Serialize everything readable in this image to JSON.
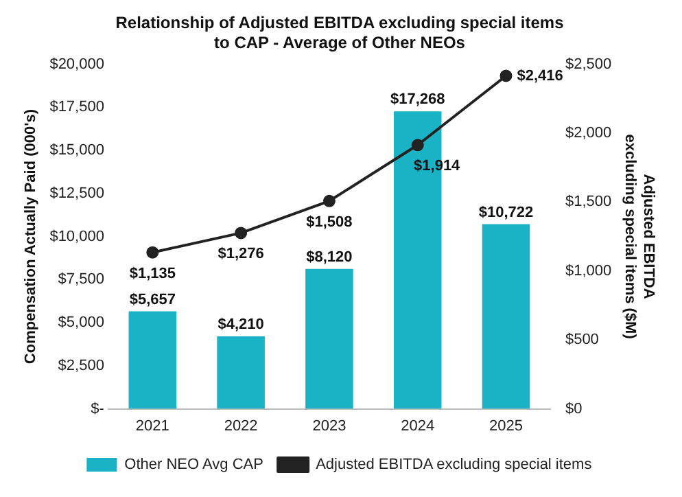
{
  "chart_data": {
    "type": "bar",
    "title": [
      "Relationship of Adjusted EBITDA excluding special items",
      "to CAP - Average of Other NEOs"
    ],
    "categories": [
      "2021",
      "2022",
      "2023",
      "2024",
      "2025"
    ],
    "series": [
      {
        "name": "Other NEO Avg CAP",
        "color": "#1ab3c6",
        "values": [
          5657,
          4210,
          8120,
          17268,
          10722
        ],
        "value_labels": [
          "$5,657",
          "$4,210",
          "$8,120",
          "$17,268",
          "$10,722"
        ]
      },
      {
        "name": "Adjusted EBITDA excluding special items",
        "type": "line",
        "axis": "y2",
        "color": "#222222",
        "marker": "circle",
        "values": [
          1135,
          1276,
          1508,
          1914,
          2416
        ],
        "value_labels": [
          "$1,135",
          "$1,276",
          "$1,508",
          "$1,914",
          "$2,416"
        ]
      }
    ],
    "ylabel": "Compensation Actually Paid (000's)",
    "y2label": [
      "Adjusted EBITDA",
      "excluding special items ($M)"
    ],
    "ylim": [
      0,
      20000
    ],
    "yticks": [
      {
        "value": 0,
        "label": "$-"
      },
      {
        "value": 2500,
        "label": "$2,500"
      },
      {
        "value": 5000,
        "label": "$5,000"
      },
      {
        "value": 7500,
        "label": "$7,500"
      },
      {
        "value": 10000,
        "label": "$10,000"
      },
      {
        "value": 12500,
        "label": "$12,500"
      },
      {
        "value": 15000,
        "label": "$15,000"
      },
      {
        "value": 17500,
        "label": "$17,500"
      },
      {
        "value": 20000,
        "label": "$20,000"
      }
    ],
    "y2lim": [
      0,
      2500
    ],
    "y2ticks": [
      {
        "value": 0,
        "label": "$0"
      },
      {
        "value": 500,
        "label": "$500"
      },
      {
        "value": 1000,
        "label": "$1,000"
      },
      {
        "value": 1500,
        "label": "$1,500"
      },
      {
        "value": 2000,
        "label": "$2,000"
      },
      {
        "value": 2500,
        "label": "$2,500"
      }
    ],
    "legend": "bottom",
    "grid": false
  }
}
